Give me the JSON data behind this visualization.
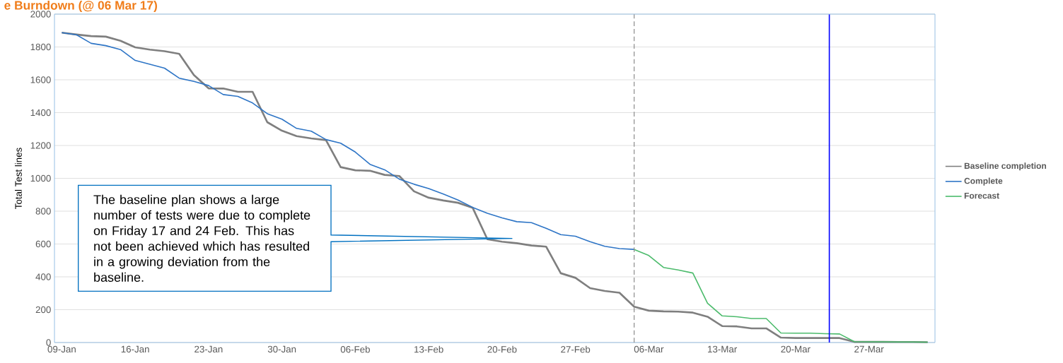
{
  "chart_data": {
    "type": "line",
    "title": "e Burndown (@ 06 Mar 17)",
    "ylabel": "Total Test lines",
    "categories": [
      "09-Jan",
      null,
      null,
      null,
      null,
      "16-Jan",
      null,
      null,
      null,
      null,
      "23-Jan",
      null,
      null,
      null,
      null,
      "30-Jan",
      null,
      null,
      null,
      null,
      "06-Feb",
      null,
      null,
      null,
      null,
      "13-Feb",
      null,
      null,
      null,
      null,
      "20-Feb",
      null,
      null,
      null,
      null,
      "27-Feb",
      null,
      null,
      null,
      null,
      "06-Mar",
      null,
      null,
      null,
      null,
      "13-Mar",
      null,
      null,
      null,
      null,
      "20-Mar",
      null,
      null,
      null,
      null,
      "27-Mar",
      null,
      null,
      null,
      null
    ],
    "series": [
      {
        "name": "Baseline completion",
        "color": "#7f7f7f",
        "values": [
          1887,
          1876,
          1866,
          1863,
          1838,
          1798,
          1784,
          1774,
          1758,
          1629,
          1548,
          1547,
          1527,
          1527,
          1342,
          1290,
          1257,
          1243,
          1233,
          1068,
          1049,
          1046,
          1021,
          1014,
          921,
          882,
          865,
          851,
          820,
          629,
          614,
          605,
          591,
          584,
          422,
          394,
          331,
          314,
          303,
          218,
          194,
          190,
          188,
          182,
          157,
          100,
          98,
          86,
          86,
          30,
          27,
          27,
          27,
          27,
          4,
          4,
          4,
          3,
          3,
          2
        ]
      },
      {
        "name": "Complete",
        "color": "#2e75c6",
        "values": [
          1887,
          1874,
          1822,
          1808,
          1784,
          1718,
          1695,
          1671,
          1610,
          1590,
          1565,
          1510,
          1499,
          1459,
          1394,
          1360,
          1304,
          1287,
          1236,
          1214,
          1160,
          1085,
          1052,
          995,
          964,
          938,
          904,
          868,
          823,
          787,
          759,
          736,
          730,
          696,
          657,
          647,
          614,
          586,
          572,
          567,
          null,
          null,
          null,
          null,
          null,
          null,
          null,
          null,
          null,
          null,
          null,
          null,
          null,
          null,
          null,
          null,
          null,
          null,
          null,
          null
        ]
      },
      {
        "name": "Forecast",
        "color": "#4cbb6c",
        "values": [
          null,
          null,
          null,
          null,
          null,
          null,
          null,
          null,
          null,
          null,
          null,
          null,
          null,
          null,
          null,
          null,
          null,
          null,
          null,
          null,
          null,
          null,
          null,
          null,
          null,
          null,
          null,
          null,
          null,
          null,
          null,
          null,
          null,
          null,
          null,
          null,
          null,
          null,
          null,
          567,
          530,
          457,
          442,
          423,
          239,
          162,
          157,
          146,
          146,
          58,
          57,
          57,
          54,
          52,
          5,
          4,
          4,
          3,
          3,
          2
        ]
      }
    ],
    "ylim": [
      0,
      2000
    ],
    "yticks": [
      0,
      200,
      400,
      600,
      800,
      1000,
      1200,
      1400,
      1600,
      1800,
      2000
    ],
    "grid": "y",
    "legend": "right",
    "annotations": [
      "The baseline plan shows a large number of tests were due to complete on Friday 17 and 24 Feb. This has not been achieved which has resulted in a growing deviation from the baseline."
    ]
  }
}
